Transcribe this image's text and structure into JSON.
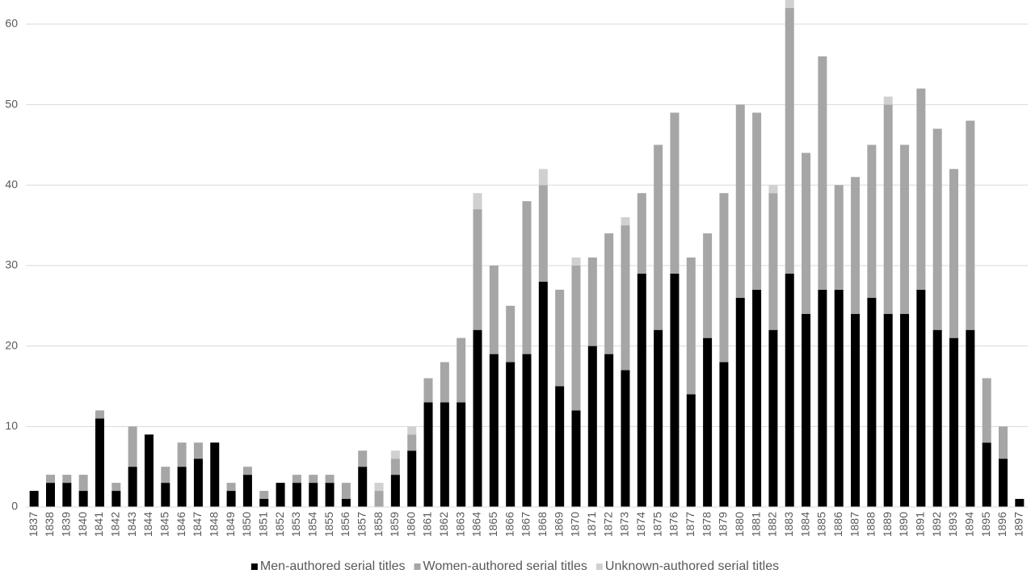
{
  "chart_data": {
    "type": "stacked_bar",
    "categories": [
      "1837",
      "1838",
      "1839",
      "1840",
      "1841",
      "1842",
      "1843",
      "1844",
      "1845",
      "1846",
      "1847",
      "1848",
      "1849",
      "1850",
      "1851",
      "1852",
      "1853",
      "1854",
      "1855",
      "1856",
      "1857",
      "1858",
      "1859",
      "1860",
      "1861",
      "1862",
      "1863",
      "1864",
      "1865",
      "1866",
      "1867",
      "1868",
      "1869",
      "1870",
      "1871",
      "1872",
      "1873",
      "1874",
      "1875",
      "1876",
      "1877",
      "1878",
      "1879",
      "1880",
      "1881",
      "1882",
      "1883",
      "1884",
      "1885",
      "1886",
      "1887",
      "1888",
      "1889",
      "1890",
      "1891",
      "1892",
      "1893",
      "1894",
      "1895",
      "1896",
      "1897"
    ],
    "series": [
      {
        "name": "Men-authored serial titles",
        "color": "#000000",
        "values": [
          2,
          3,
          3,
          2,
          11,
          2,
          5,
          9,
          3,
          5,
          6,
          8,
          2,
          4,
          1,
          3,
          3,
          3,
          3,
          1,
          5,
          0,
          4,
          7,
          13,
          13,
          13,
          22,
          19,
          18,
          19,
          28,
          15,
          12,
          20,
          19,
          17,
          29,
          22,
          29,
          14,
          21,
          18,
          26,
          27,
          22,
          29,
          24,
          27,
          27,
          24,
          26,
          24,
          24,
          27,
          22,
          21,
          22,
          8,
          6,
          1
        ]
      },
      {
        "name": "Women-authored serial titles",
        "color": "#a6a6a6",
        "values": [
          0,
          1,
          1,
          2,
          1,
          1,
          5,
          0,
          2,
          3,
          2,
          0,
          1,
          1,
          1,
          0,
          1,
          1,
          1,
          2,
          2,
          2,
          2,
          2,
          3,
          5,
          8,
          15,
          11,
          7,
          19,
          12,
          12,
          18,
          11,
          15,
          18,
          10,
          23,
          20,
          17,
          13,
          21,
          24,
          22,
          17,
          33,
          20,
          29,
          13,
          17,
          19,
          26,
          21,
          25,
          25,
          21,
          26,
          8,
          4,
          0
        ]
      },
      {
        "name": "Unknown-authored serial titles",
        "color": "#d0d0d0",
        "values": [
          0,
          0,
          0,
          0,
          0,
          0,
          0,
          0,
          0,
          0,
          0,
          0,
          0,
          0,
          0,
          0,
          0,
          0,
          0,
          0,
          0,
          1,
          1,
          1,
          0,
          0,
          0,
          2,
          0,
          0,
          0,
          2,
          0,
          1,
          0,
          0,
          1,
          0,
          0,
          0,
          0,
          0,
          0,
          0,
          0,
          1,
          1,
          0,
          0,
          0,
          0,
          0,
          1,
          0,
          0,
          0,
          0,
          0,
          0,
          0,
          0
        ]
      }
    ],
    "ylim": [
      0,
      63
    ],
    "yticks": [
      0,
      10,
      20,
      30,
      40,
      50,
      60
    ],
    "grid": true,
    "legend": "bottom"
  }
}
